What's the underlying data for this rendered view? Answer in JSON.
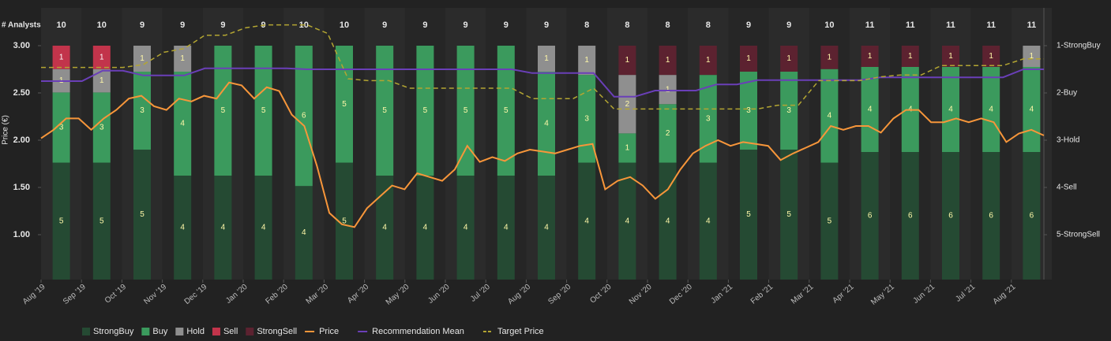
{
  "chart_data": {
    "type": "bar",
    "stacked": true,
    "y_label": "Price (€)",
    "analysts_label": "# Analysts",
    "categories": [
      "Aug '19",
      "Sep '19",
      "Oct '19",
      "Nov '19",
      "Dec '19",
      "Jan '20",
      "Feb '20",
      "Mar '20",
      "Apr '20",
      "May '20",
      "Jun '20",
      "Jul '20",
      "Aug '20",
      "Sep '20",
      "Oct '20",
      "Nov '20",
      "Dec '20",
      "Jan '21",
      "Feb '21",
      "Mar '21",
      "Apr '21",
      "May '21",
      "Jun '21",
      "Jul '21",
      "Aug '21"
    ],
    "analysts": [
      10,
      10,
      9,
      9,
      9,
      9,
      10,
      10,
      9,
      9,
      9,
      9,
      9,
      8,
      8,
      8,
      8,
      9,
      9,
      10,
      11,
      11,
      11,
      11,
      11
    ],
    "series": [
      {
        "name": "StrongBuy",
        "color": "#254a33",
        "values": [
          5,
          5,
          5,
          4,
          4,
          4,
          4,
          5,
          4,
          4,
          4,
          4,
          4,
          4,
          4,
          4,
          4,
          5,
          5,
          5,
          6,
          6,
          6,
          6,
          6
        ]
      },
      {
        "name": "Buy",
        "color": "#3b9a5d",
        "values": [
          3,
          3,
          3,
          4,
          5,
          5,
          6,
          5,
          5,
          5,
          5,
          5,
          4,
          3,
          1,
          2,
          3,
          3,
          3,
          4,
          4,
          4,
          4,
          4,
          4
        ]
      },
      {
        "name": "Hold",
        "color": "#8f8f8f",
        "values": [
          1,
          1,
          1,
          1,
          0,
          0,
          0,
          0,
          0,
          0,
          0,
          0,
          1,
          1,
          2,
          1,
          0,
          0,
          0,
          0,
          0,
          0,
          0,
          0,
          1
        ]
      },
      {
        "name": "Sell",
        "color": "#c2344b",
        "values": [
          1,
          1,
          0,
          0,
          0,
          0,
          0,
          0,
          0,
          0,
          0,
          0,
          0,
          0,
          0,
          0,
          0,
          0,
          0,
          0,
          0,
          0,
          0,
          0,
          0
        ]
      },
      {
        "name": "StrongSell",
        "color": "#5c2230",
        "values": [
          0,
          0,
          0,
          0,
          0,
          0,
          0,
          0,
          0,
          0,
          0,
          0,
          0,
          0,
          1,
          1,
          1,
          1,
          1,
          1,
          1,
          1,
          1,
          1,
          0
        ]
      }
    ],
    "lines": [
      {
        "name": "Price",
        "color": "#f7963a",
        "axis": "y",
        "dashed": false,
        "values": [
          2.02,
          2.11,
          2.23,
          2.23,
          2.11,
          2.23,
          2.32,
          2.44,
          2.47,
          2.36,
          2.32,
          2.44,
          2.41,
          2.47,
          2.44,
          2.61,
          2.58,
          2.44,
          2.56,
          2.52,
          2.27,
          2.15,
          1.73,
          1.23,
          1.11,
          1.08,
          1.28,
          1.4,
          1.52,
          1.48,
          1.65,
          1.61,
          1.57,
          1.69,
          1.94,
          1.77,
          1.82,
          1.78,
          1.86,
          1.9,
          1.88,
          1.86,
          1.9,
          1.94,
          1.96,
          1.48,
          1.57,
          1.61,
          1.52,
          1.38,
          1.48,
          1.69,
          1.86,
          1.94,
          2.0,
          1.94,
          1.98,
          1.96,
          1.94,
          1.79,
          1.86,
          1.92,
          1.98,
          2.15,
          2.11,
          2.15,
          2.15,
          2.08,
          2.23,
          2.32,
          2.32,
          2.19,
          2.19,
          2.23,
          2.19,
          2.23,
          2.19,
          1.98,
          2.07,
          2.11,
          2.05
        ]
      },
      {
        "name": "Recommendation Mean",
        "color": "#6a3fb8",
        "axis": "y2",
        "dashed": false,
        "values": [
          1.75,
          1.75,
          1.75,
          1.53,
          1.53,
          1.63,
          1.63,
          1.63,
          1.48,
          1.48,
          1.48,
          1.48,
          1.48,
          1.5,
          1.5,
          1.5,
          1.5,
          1.5,
          1.5,
          1.5,
          1.5,
          1.5,
          1.5,
          1.5,
          1.58,
          1.58,
          1.58,
          1.58,
          2.08,
          2.08,
          1.95,
          1.95,
          1.95,
          1.82,
          1.82,
          1.73,
          1.73,
          1.73,
          1.73,
          1.73,
          1.73,
          1.67,
          1.67,
          1.67,
          1.67,
          1.67,
          1.67,
          1.67,
          1.5,
          1.5
        ]
      },
      {
        "name": "Target Price",
        "color": "#b3a532",
        "axis": "y",
        "dashed": true,
        "values": [
          2.77,
          2.77,
          2.77,
          2.77,
          2.77,
          2.8,
          2.93,
          2.97,
          3.11,
          3.11,
          3.19,
          3.22,
          3.22,
          3.22,
          3.13,
          2.65,
          2.63,
          2.63,
          2.55,
          2.55,
          2.55,
          2.55,
          2.55,
          2.55,
          2.44,
          2.44,
          2.44,
          2.55,
          2.33,
          2.33,
          2.33,
          2.33,
          2.33,
          2.33,
          2.33,
          2.33,
          2.37,
          2.37,
          2.63,
          2.63,
          2.63,
          2.67,
          2.69,
          2.69,
          2.79,
          2.79,
          2.79,
          2.79,
          2.86,
          2.86
        ]
      }
    ],
    "ylim": [
      0.525,
      3.4
    ],
    "yticks": [
      {
        "value": 1,
        "label": "1.00"
      },
      {
        "value": 1.5,
        "label": "1.50"
      },
      {
        "value": 2,
        "label": "2.00"
      },
      {
        "value": 2.5,
        "label": "2.50"
      },
      {
        "value": 3,
        "label": "3.00"
      }
    ],
    "y2lim": [
      5.95,
      0.2
    ],
    "y2ticks": [
      {
        "value": 1,
        "label": "1-StrongBuy"
      },
      {
        "value": 2,
        "label": "2-Buy"
      },
      {
        "value": 3,
        "label": "3-Hold"
      },
      {
        "value": 4,
        "label": "4-Sell"
      },
      {
        "value": 5,
        "label": "5-StrongSell"
      }
    ]
  }
}
